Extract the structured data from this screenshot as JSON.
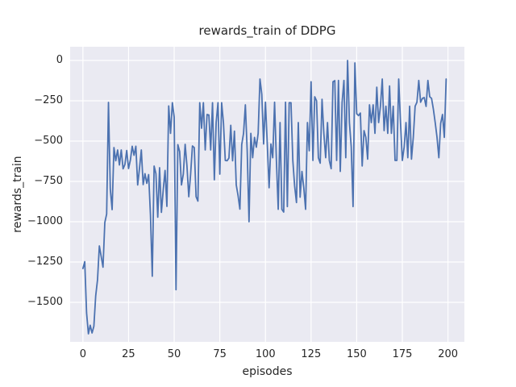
{
  "figure": {
    "background": "#ffffff"
  },
  "chart_data": {
    "type": "line",
    "title": "rewards_train of DDPG",
    "xlabel": "episodes",
    "ylabel": "rewards_train",
    "legend": "none",
    "grid": true,
    "x_is_index": true,
    "xlim": [
      -7,
      209
    ],
    "ylim": [
      -1745,
      85
    ],
    "plot_bg": "#eaeaf2",
    "grid_color": "#ffffff",
    "text_color": "#262626",
    "line_color": "#4c72b0",
    "x_ticks": [
      {
        "v": 0,
        "label": "0"
      },
      {
        "v": 25,
        "label": "25"
      },
      {
        "v": 50,
        "label": "50"
      },
      {
        "v": 75,
        "label": "75"
      },
      {
        "v": 100,
        "label": "100"
      },
      {
        "v": 125,
        "label": "125"
      },
      {
        "v": 150,
        "label": "150"
      },
      {
        "v": 175,
        "label": "175"
      },
      {
        "v": 200,
        "label": "200"
      }
    ],
    "y_ticks": [
      {
        "v": 0,
        "label": "0"
      },
      {
        "v": -250,
        "label": "−250"
      },
      {
        "v": -500,
        "label": "−500"
      },
      {
        "v": -750,
        "label": "−750"
      },
      {
        "v": -1000,
        "label": "−1000"
      },
      {
        "v": -1250,
        "label": "−1250"
      },
      {
        "v": -1500,
        "label": "−1500"
      }
    ],
    "values": [
      -1290,
      -1248,
      -1565,
      -1695,
      -1642,
      -1690,
      -1648,
      -1460,
      -1360,
      -1150,
      -1215,
      -1282,
      -1005,
      -952,
      -260,
      -798,
      -925,
      -540,
      -622,
      -555,
      -648,
      -555,
      -672,
      -645,
      -558,
      -670,
      -618,
      -532,
      -588,
      -532,
      -772,
      -668,
      -555,
      -770,
      -702,
      -762,
      -708,
      -958,
      -1338,
      -655,
      -702,
      -972,
      -665,
      -942,
      -802,
      -682,
      -905,
      -282,
      -452,
      -262,
      -352,
      -1422,
      -522,
      -565,
      -772,
      -705,
      -520,
      -655,
      -845,
      -705,
      -530,
      -540,
      -845,
      -872,
      -262,
      -420,
      -262,
      -555,
      -335,
      -338,
      -555,
      -262,
      -740,
      -385,
      -262,
      -705,
      -262,
      -388,
      -620,
      -622,
      -605,
      -402,
      -622,
      -438,
      -772,
      -838,
      -922,
      -522,
      -452,
      -275,
      -560,
      -1000,
      -452,
      -603,
      -477,
      -538,
      -452,
      -115,
      -210,
      -518,
      -259,
      -518,
      -789,
      -518,
      -603,
      -259,
      -620,
      -923,
      -385,
      -923,
      -940,
      -259,
      -906,
      -262,
      -262,
      -620,
      -780,
      -881,
      -385,
      -848,
      -688,
      -789,
      -923,
      -385,
      -560,
      -132,
      -620,
      -225,
      -250,
      -603,
      -637,
      -241,
      -452,
      -603,
      -385,
      -620,
      -671,
      -132,
      -125,
      -620,
      -124,
      -688,
      -260,
      -124,
      -603,
      0,
      -385,
      -536,
      -906,
      -15,
      -330,
      -342,
      -326,
      -654,
      -435,
      -477,
      -612,
      -275,
      -385,
      -275,
      -452,
      -166,
      -385,
      -284,
      -115,
      -435,
      -284,
      -452,
      -158,
      -452,
      -284,
      -620,
      -620,
      -115,
      -385,
      -620,
      -536,
      -385,
      -603,
      -284,
      -612,
      -477,
      -284,
      -259,
      -124,
      -259,
      -235,
      -230,
      -285,
      -124,
      -225,
      -235,
      -302,
      -385,
      -477,
      -603,
      -390,
      -335,
      -477,
      -115
    ]
  }
}
